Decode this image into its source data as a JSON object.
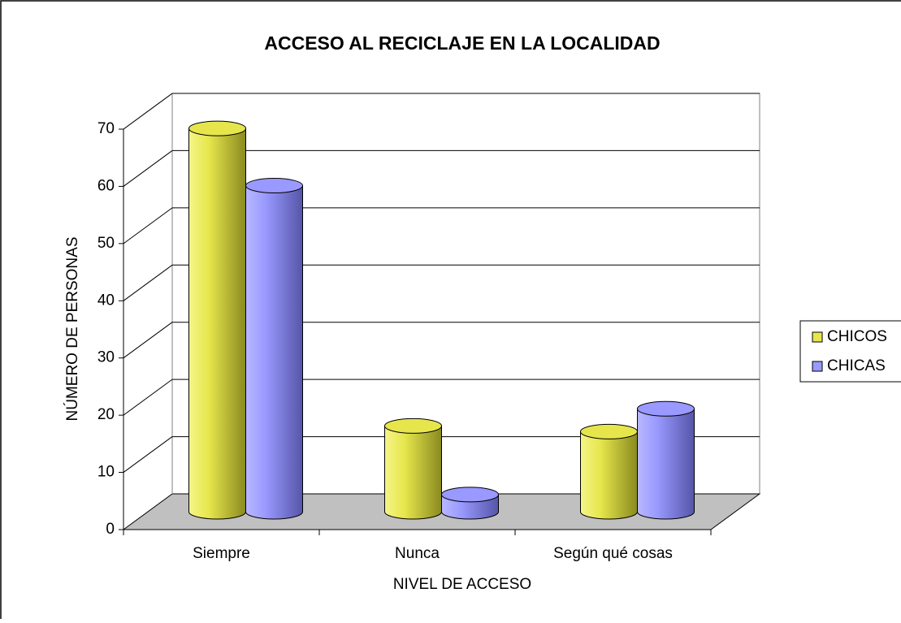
{
  "chart_data": {
    "type": "bar3d",
    "title": "ACCESO AL RECICLAJE EN LA LOCALIDAD",
    "xlabel": "NIVEL DE ACCESO",
    "ylabel": "NÚMERO DE PERSONAS",
    "categories": [
      "Siempre",
      "Nunca",
      "Según qué cosas"
    ],
    "series": [
      {
        "name": "CHICOS",
        "color": "#e6e64c",
        "values": [
          67,
          15,
          14
        ]
      },
      {
        "name": "CHICAS",
        "color": "#9999ff",
        "values": [
          57,
          3,
          18
        ]
      }
    ],
    "ylim": [
      0,
      70
    ],
    "yticks": [
      0,
      10,
      20,
      30,
      40,
      50,
      60,
      70
    ],
    "grid": true,
    "legend": "right"
  }
}
